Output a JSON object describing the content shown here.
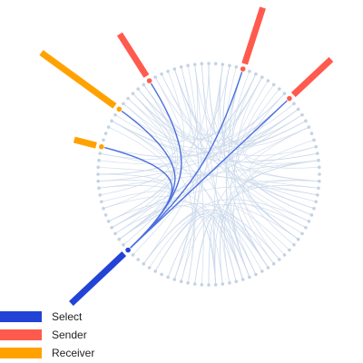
{
  "colors": {
    "select": "#2243d6",
    "sender": "#ff5a4d",
    "receiver": "#ffa200",
    "node": "#c3d2e4",
    "link": "#c9d7ea",
    "highlight": "#4b6fe0"
  },
  "legend": [
    {
      "key": "select",
      "label": "Select"
    },
    {
      "key": "sender",
      "label": "Sender"
    },
    {
      "key": "receiver",
      "label": "Receiver"
    }
  ],
  "diagram": {
    "node_count": 100,
    "selected_node": 63,
    "senders": [
      91,
      5,
      13
    ],
    "receivers": [
      85,
      79
    ]
  }
}
